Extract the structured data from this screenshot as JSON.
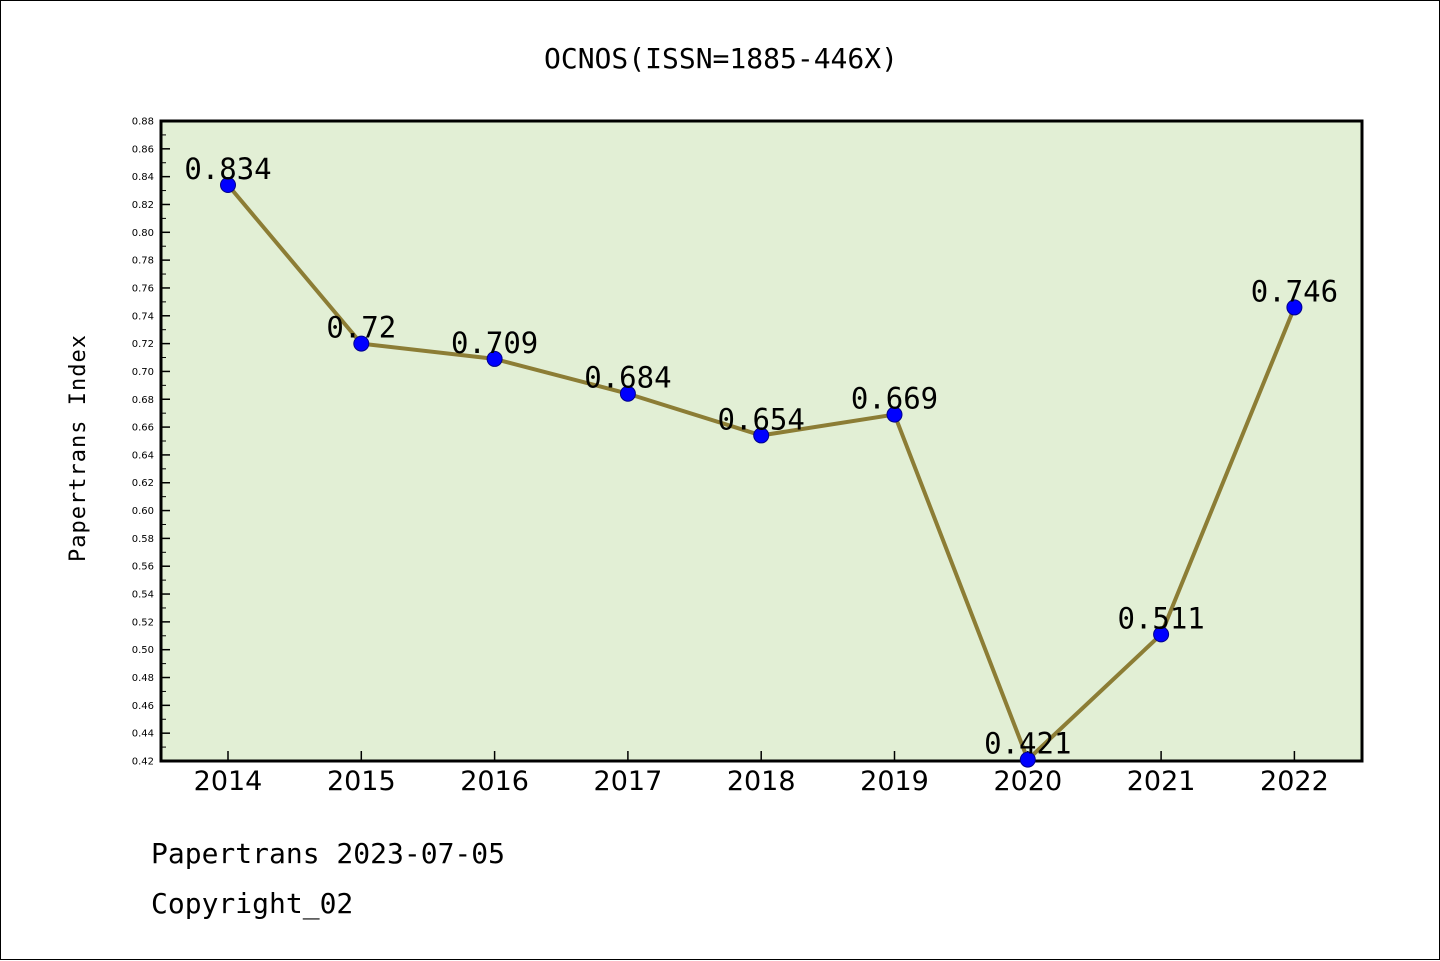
{
  "chart_data": {
    "type": "line",
    "title": "OCNOS(ISSN=1885-446X)",
    "xlabel": "",
    "ylabel": "Papertrans Index",
    "categories": [
      "2014",
      "2015",
      "2016",
      "2017",
      "2018",
      "2019",
      "2020",
      "2021",
      "2022"
    ],
    "values": [
      0.834,
      0.72,
      0.709,
      0.684,
      0.654,
      0.669,
      0.421,
      0.511,
      0.746
    ],
    "data_labels": [
      "0.834",
      "0.72",
      "0.709",
      "0.684",
      "0.654",
      "0.669",
      "0.421",
      "0.511",
      "0.746"
    ],
    "ylim": [
      0.42,
      0.88
    ],
    "ytick_step": 0.02,
    "grid": false,
    "legend": "none",
    "colors": {
      "plot_background": "#e2efd5",
      "line": "#8c7d35",
      "marker": "#0000ff"
    }
  },
  "footer": {
    "line1": "Papertrans 2023-07-05",
    "line2": "Copyright_02"
  }
}
